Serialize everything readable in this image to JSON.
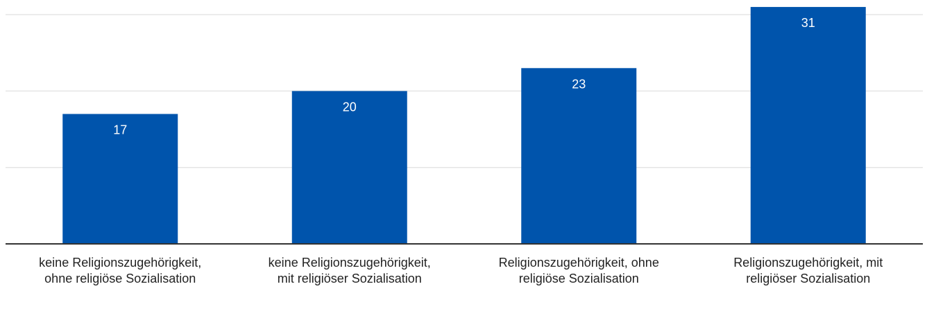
{
  "chart_data": {
    "type": "bar",
    "categories": [
      [
        "keine Religionszugehörigkeit,",
        "ohne religiöse Sozialisation"
      ],
      [
        "keine Religionszugehörigkeit,",
        "mit religiöser Sozialisation"
      ],
      [
        "Religionszugehörigkeit, ohne",
        "religiöse Sozialisation"
      ],
      [
        "Religionszugehörigkeit, mit",
        "religiöser Sozialisation"
      ]
    ],
    "values": [
      17,
      20,
      23,
      31
    ],
    "data_labels": [
      "17",
      "20",
      "23",
      "31"
    ],
    "title": "",
    "xlabel": "",
    "ylabel": "",
    "ylim": [
      0,
      30
    ],
    "grid": true,
    "colors": {
      "bar": "#0054ac",
      "grid": "#e5e5e5",
      "baseline": "#333333"
    }
  }
}
